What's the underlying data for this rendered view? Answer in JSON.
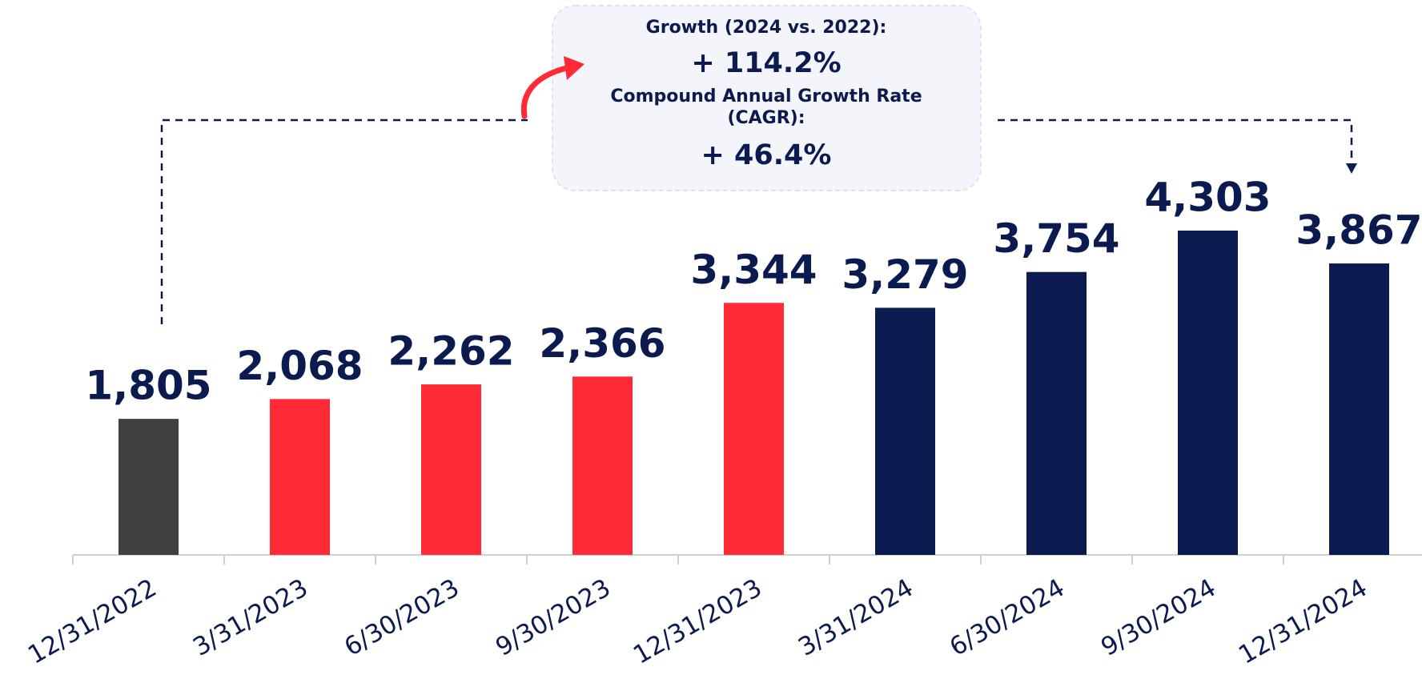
{
  "chart_data": {
    "type": "bar",
    "categories": [
      "12/31/2022",
      "3/31/2023",
      "6/30/2023",
      "9/30/2023",
      "12/31/2023",
      "3/31/2024",
      "6/30/2024",
      "9/30/2024",
      "12/31/2024"
    ],
    "values": [
      1805,
      2068,
      2262,
      2366,
      3344,
      3279,
      3754,
      4303,
      3867
    ],
    "value_labels": [
      "1,805",
      "2,068",
      "2,262",
      "2,366",
      "3,344",
      "3,279",
      "3,754",
      "4,303",
      "3,867"
    ],
    "colors": [
      "#404040",
      "#ff2a36",
      "#ff2a36",
      "#ff2a36",
      "#ff2a36",
      "#0b1a4f",
      "#0b1a4f",
      "#0b1a4f",
      "#0b1a4f"
    ],
    "annotations": [
      "Growth (2024 vs. 2022):",
      "+ 114.2%",
      "Compound Annual Growth Rate",
      "(CAGR):",
      "+ 46.4%"
    ]
  }
}
